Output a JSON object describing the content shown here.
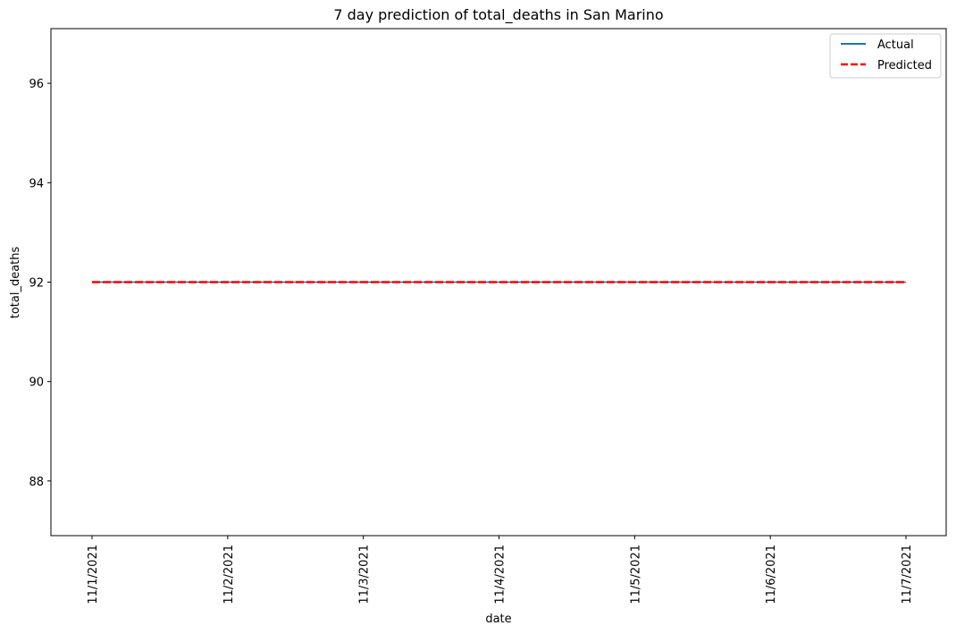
{
  "chart_data": {
    "type": "line",
    "title": "7 day prediction of total_deaths in San Marino",
    "xlabel": "date",
    "ylabel": "total_deaths",
    "categories": [
      "11/1/2021",
      "11/2/2021",
      "11/3/2021",
      "11/4/2021",
      "11/5/2021",
      "11/6/2021",
      "11/7/2021"
    ],
    "ylim": [
      86.9,
      97.1
    ],
    "yticks": [
      88,
      90,
      92,
      94,
      96
    ],
    "series": [
      {
        "name": "Actual",
        "values": [
          92,
          92,
          92,
          92,
          92,
          92,
          92
        ],
        "color": "#1f77b4",
        "style": "solid"
      },
      {
        "name": "Predicted",
        "values": [
          92,
          92,
          92,
          92,
          92,
          92,
          92
        ],
        "color": "#ff0000",
        "style": "dashed"
      }
    ],
    "legend_position": "top-right",
    "grid": false
  }
}
